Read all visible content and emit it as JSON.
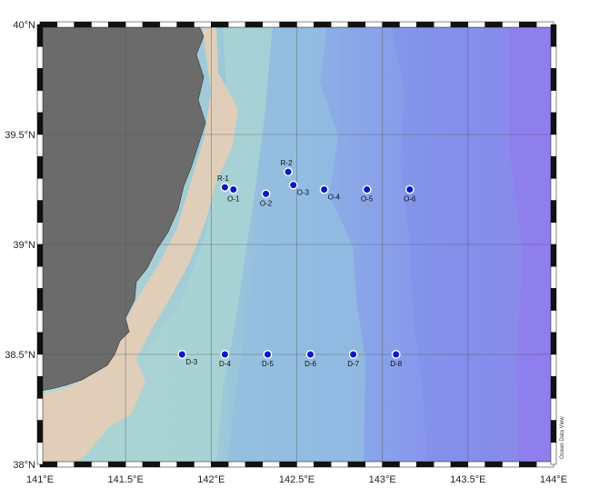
{
  "map": {
    "lon_range": [
      141,
      144
    ],
    "lat_range": [
      38,
      40
    ],
    "x_ticks": [
      {
        "value": 141,
        "label": "141°E"
      },
      {
        "value": 141.5,
        "label": "141.5°E"
      },
      {
        "value": 142,
        "label": "142°E"
      },
      {
        "value": 142.5,
        "label": "142.5°E"
      },
      {
        "value": 143,
        "label": "143°E"
      },
      {
        "value": 143.5,
        "label": "143.5°E"
      },
      {
        "value": 144,
        "label": "144°E"
      }
    ],
    "y_ticks": [
      {
        "value": 40,
        "label": "40°N"
      },
      {
        "value": 39.5,
        "label": "39.5°N"
      },
      {
        "value": 39,
        "label": "39°N"
      },
      {
        "value": 38.5,
        "label": "38.5°N"
      },
      {
        "value": 38,
        "label": "38°N"
      }
    ],
    "grid": true,
    "credit": "Ocean Data View",
    "colors": {
      "land": "#6b6b6b",
      "shelf": "#e7cdb8",
      "deep": "#9b7ef0",
      "station": "#0a18c8",
      "grid": "#555555"
    }
  },
  "stations": [
    {
      "name": "R-1",
      "lon": 142.08,
      "lat": 39.26,
      "label_pos": "above"
    },
    {
      "name": "O-1",
      "lon": 142.13,
      "lat": 39.25,
      "label_pos": "below"
    },
    {
      "name": "O-2",
      "lon": 142.32,
      "lat": 39.23,
      "label_pos": "below"
    },
    {
      "name": "R-2",
      "lon": 142.45,
      "lat": 39.33,
      "label_pos": "above"
    },
    {
      "name": "O-3",
      "lon": 142.48,
      "lat": 39.27,
      "label_pos": "below-right"
    },
    {
      "name": "O-4",
      "lon": 142.66,
      "lat": 39.25,
      "label_pos": "below-right"
    },
    {
      "name": "O-5",
      "lon": 142.91,
      "lat": 39.25,
      "label_pos": "below"
    },
    {
      "name": "O-6",
      "lon": 143.16,
      "lat": 39.25,
      "label_pos": "below"
    },
    {
      "name": "D-3",
      "lon": 141.83,
      "lat": 38.5,
      "label_pos": "below-right"
    },
    {
      "name": "D-4",
      "lon": 142.08,
      "lat": 38.5,
      "label_pos": "below"
    },
    {
      "name": "D-5",
      "lon": 142.33,
      "lat": 38.5,
      "label_pos": "below"
    },
    {
      "name": "D-6",
      "lon": 142.58,
      "lat": 38.5,
      "label_pos": "below"
    },
    {
      "name": "D-7",
      "lon": 142.83,
      "lat": 38.5,
      "label_pos": "below"
    },
    {
      "name": "D-8",
      "lon": 143.08,
      "lat": 38.5,
      "label_pos": "below"
    }
  ]
}
